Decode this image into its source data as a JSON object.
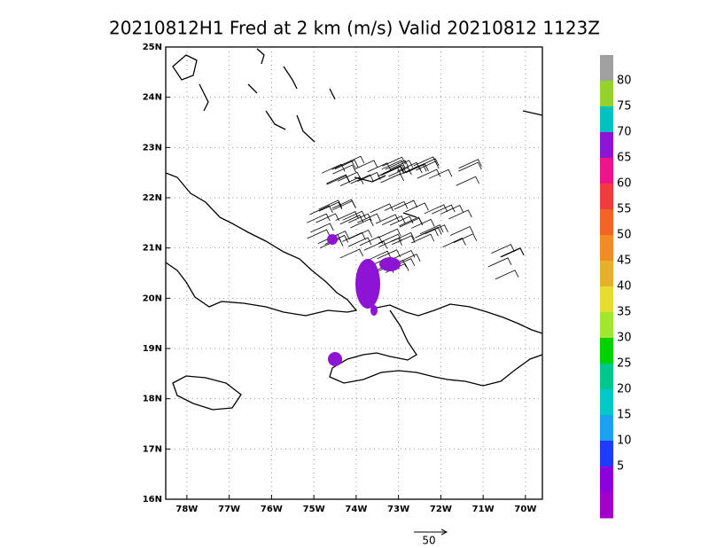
{
  "map": {
    "title": "20210812H1 Fred at 2 km (m/s) Valid 20210812 1123Z",
    "lonlim": [
      -78.5,
      -69.6
    ],
    "latlim": [
      16,
      25
    ],
    "lon_ticks": [
      {
        "value": -78,
        "label": "78W"
      },
      {
        "value": -77,
        "label": "77W"
      },
      {
        "value": -76,
        "label": "76W"
      },
      {
        "value": -75,
        "label": "75W"
      },
      {
        "value": -74,
        "label": "74W"
      },
      {
        "value": -73,
        "label": "73W"
      },
      {
        "value": -72,
        "label": "72W"
      },
      {
        "value": -71,
        "label": "71W"
      },
      {
        "value": -70,
        "label": "70W"
      }
    ],
    "lat_ticks": [
      {
        "value": 16,
        "label": "16N"
      },
      {
        "value": 17,
        "label": "17N"
      },
      {
        "value": 18,
        "label": "18N"
      },
      {
        "value": 19,
        "label": "19N"
      },
      {
        "value": 20,
        "label": "20N"
      },
      {
        "value": 21,
        "label": "21N"
      },
      {
        "value": 22,
        "label": "22N"
      },
      {
        "value": 23,
        "label": "23N"
      },
      {
        "value": 24,
        "label": "24N"
      },
      {
        "value": 25,
        "label": "25N"
      }
    ],
    "grid": true,
    "colorbar": {
      "levels": [
        80,
        75,
        70,
        65,
        60,
        55,
        50,
        45,
        40,
        35,
        30,
        25,
        20,
        15,
        10,
        5
      ],
      "colors": [
        "#a0a0a0",
        "#96d22d",
        "#00c0c0",
        "#8c14d2",
        "#f0148c",
        "#f03c3c",
        "#f06428",
        "#f08c28",
        "#e6af2d",
        "#e6dc32",
        "#a0e632",
        "#00d200",
        "#00c88c",
        "#00c8c8",
        "#1ea0f0",
        "#1e3cff",
        "#8c00dc",
        "#a000c8"
      ]
    },
    "reference_vector": {
      "label": "50"
    }
  }
}
